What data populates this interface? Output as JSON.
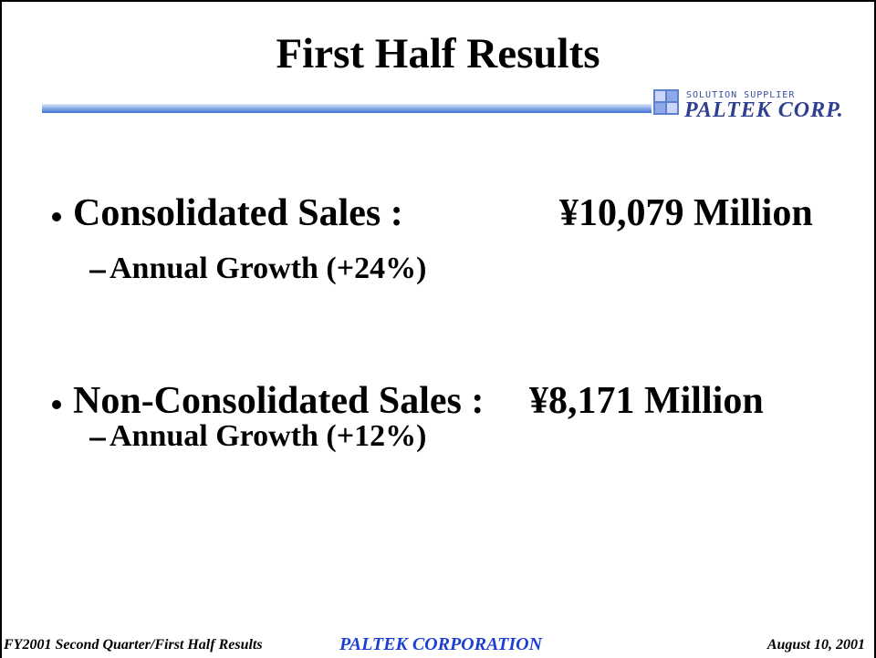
{
  "header": {
    "title": "First Half Results",
    "logo": {
      "tagline": "SOLUTION SUPPLIER",
      "name": "PALTEK CORP."
    }
  },
  "bullets": [
    {
      "label": "Consolidated Sales :",
      "value": "¥10,079 Million",
      "sub": "Annual Growth (+24%)"
    },
    {
      "label": "Non-Consolidated Sales :",
      "value": "¥8,171 Million",
      "sub": "Annual Growth (+12%)"
    }
  ],
  "footer": {
    "left": "FY2001 Second Quarter/First Half Results",
    "center": "PALTEK CORPORATION",
    "right": "August 10, 2001"
  }
}
